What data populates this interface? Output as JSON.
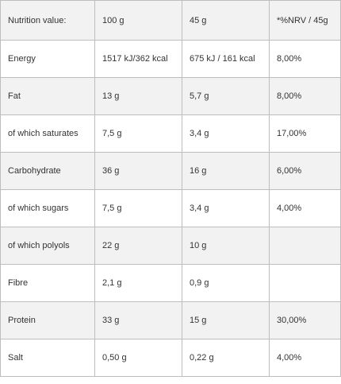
{
  "table": {
    "header": [
      "Nutrition value:",
      "100 g",
      "45 g",
      "*%NRV / 45g"
    ],
    "rows": [
      [
        "Energy",
        "1517 kJ/362 kcal",
        "675 kJ / 161 kcal",
        "8,00%"
      ],
      [
        "Fat",
        "13 g",
        "5,7 g",
        "8,00%"
      ],
      [
        "of which saturates",
        "7,5 g",
        "3,4 g",
        "17,00%"
      ],
      [
        "Carbohydrate",
        "36 g",
        "16 g",
        "6,00%"
      ],
      [
        "of which sugars",
        "7,5 g",
        "3,4 g",
        "4,00%"
      ],
      [
        "of which polyols",
        "22 g",
        "10 g",
        ""
      ],
      [
        "Fibre",
        "2,1 g",
        "0,9 g",
        ""
      ],
      [
        "Protein",
        "33 g",
        "15 g",
        "30,00%"
      ],
      [
        "Salt",
        "0,50 g",
        "0,22 g",
        "4,00%"
      ]
    ]
  }
}
